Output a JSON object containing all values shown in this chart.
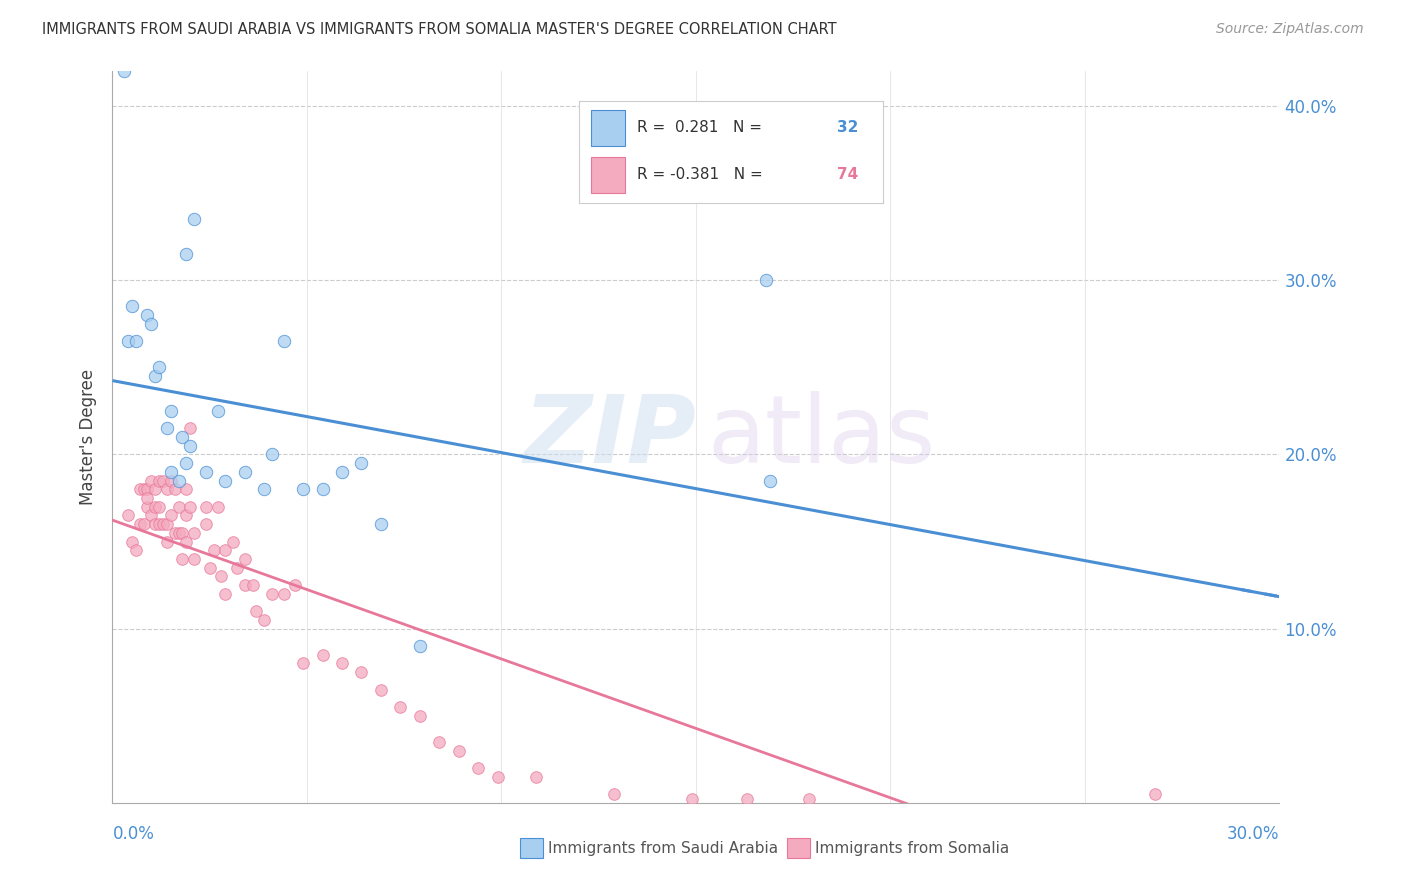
{
  "title": "IMMIGRANTS FROM SAUDI ARABIA VS IMMIGRANTS FROM SOMALIA MASTER'S DEGREE CORRELATION CHART",
  "source": "Source: ZipAtlas.com",
  "ylabel": "Master's Degree",
  "xlim": [
    0.0,
    0.3
  ],
  "ylim": [
    0.0,
    0.42
  ],
  "yticks": [
    0.1,
    0.2,
    0.3,
    0.4
  ],
  "ytick_labels": [
    "10.0%",
    "20.0%",
    "30.0%",
    "40.0%"
  ],
  "blue_color": "#A8CFEF",
  "pink_color": "#F4AABF",
  "blue_line_color": "#4A8FD4",
  "pink_line_color": "#E8789A",
  "blue_scatter_x": [
    0.019,
    0.021,
    0.004,
    0.005,
    0.006,
    0.009,
    0.01,
    0.011,
    0.012,
    0.014,
    0.015,
    0.015,
    0.017,
    0.018,
    0.019,
    0.02,
    0.024,
    0.027,
    0.029,
    0.034,
    0.039,
    0.041,
    0.044,
    0.049,
    0.054,
    0.059,
    0.064,
    0.069,
    0.079,
    0.168,
    0.169,
    0.003
  ],
  "blue_scatter_y": [
    0.315,
    0.335,
    0.265,
    0.285,
    0.265,
    0.28,
    0.275,
    0.245,
    0.25,
    0.215,
    0.225,
    0.19,
    0.185,
    0.21,
    0.195,
    0.205,
    0.19,
    0.225,
    0.185,
    0.19,
    0.18,
    0.2,
    0.265,
    0.18,
    0.18,
    0.19,
    0.195,
    0.16,
    0.09,
    0.3,
    0.185,
    0.42
  ],
  "pink_scatter_x": [
    0.004,
    0.005,
    0.006,
    0.007,
    0.007,
    0.008,
    0.008,
    0.009,
    0.009,
    0.009,
    0.01,
    0.01,
    0.011,
    0.011,
    0.011,
    0.012,
    0.012,
    0.012,
    0.013,
    0.013,
    0.014,
    0.014,
    0.014,
    0.015,
    0.015,
    0.016,
    0.016,
    0.017,
    0.017,
    0.018,
    0.018,
    0.019,
    0.019,
    0.019,
    0.02,
    0.02,
    0.021,
    0.021,
    0.024,
    0.024,
    0.025,
    0.026,
    0.027,
    0.028,
    0.029,
    0.029,
    0.031,
    0.032,
    0.034,
    0.034,
    0.036,
    0.037,
    0.039,
    0.041,
    0.044,
    0.047,
    0.049,
    0.054,
    0.059,
    0.064,
    0.069,
    0.074,
    0.079,
    0.084,
    0.089,
    0.094,
    0.099,
    0.109,
    0.129,
    0.149,
    0.163,
    0.179,
    0.268,
    0.368
  ],
  "pink_scatter_y": [
    0.165,
    0.15,
    0.145,
    0.18,
    0.16,
    0.18,
    0.16,
    0.18,
    0.17,
    0.175,
    0.185,
    0.165,
    0.18,
    0.17,
    0.16,
    0.185,
    0.17,
    0.16,
    0.185,
    0.16,
    0.18,
    0.16,
    0.15,
    0.185,
    0.165,
    0.18,
    0.155,
    0.17,
    0.155,
    0.155,
    0.14,
    0.18,
    0.165,
    0.15,
    0.215,
    0.17,
    0.155,
    0.14,
    0.17,
    0.16,
    0.135,
    0.145,
    0.17,
    0.13,
    0.145,
    0.12,
    0.15,
    0.135,
    0.125,
    0.14,
    0.125,
    0.11,
    0.105,
    0.12,
    0.12,
    0.125,
    0.08,
    0.085,
    0.08,
    0.075,
    0.065,
    0.055,
    0.05,
    0.035,
    0.03,
    0.02,
    0.015,
    0.015,
    0.005,
    0.002,
    0.002,
    0.002,
    0.005,
    0.001
  ]
}
